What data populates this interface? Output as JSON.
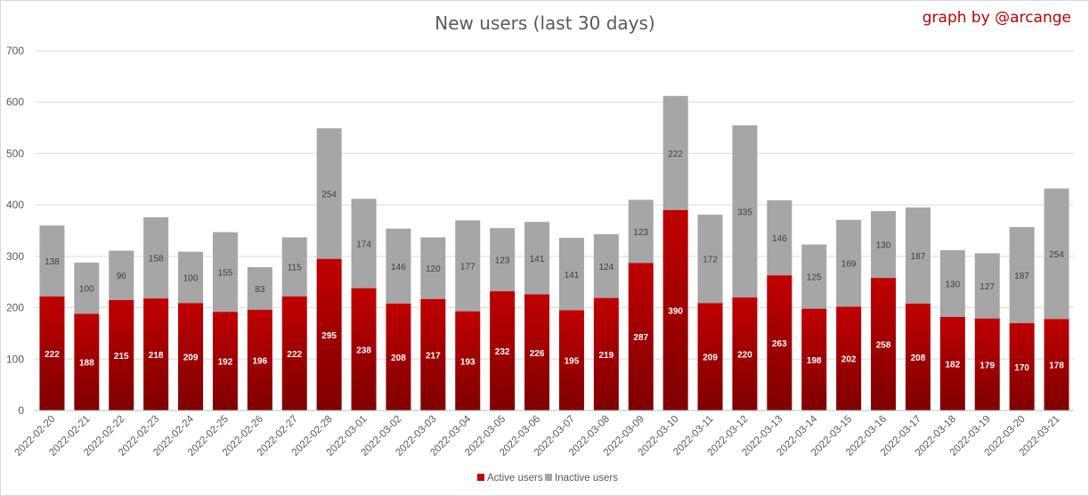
{
  "chart_data": {
    "type": "bar",
    "stacked": true,
    "title": "New users (last 30 days)",
    "credit": "graph by @arcange",
    "xlabel": "",
    "ylabel": "",
    "ylim": [
      0,
      700
    ],
    "yticks": [
      0,
      100,
      200,
      300,
      400,
      500,
      600,
      700
    ],
    "grid": true,
    "legend_position": "bottom",
    "categories": [
      "2022-02-20",
      "2022-02-21",
      "2022-02-22",
      "2022-02-23",
      "2022-02-24",
      "2022-02-25",
      "2022-02-26",
      "2022-02-27",
      "2022-02-28",
      "2022-03-01",
      "2022-03-02",
      "2022-03-03",
      "2022-03-04",
      "2022-03-05",
      "2022-03-06",
      "2022-03-07",
      "2022-03-08",
      "2022-03-09",
      "2022-03-10",
      "2022-03-11",
      "2022-03-12",
      "2022-03-13",
      "2022-03-14",
      "2022-03-15",
      "2022-03-16",
      "2022-03-17",
      "2022-03-18",
      "2022-03-19",
      "2022-03-20",
      "2022-03-21"
    ],
    "series": [
      {
        "name": "Active users",
        "color": "#c00000",
        "color_dark": "#7f0000",
        "values": [
          222,
          188,
          215,
          218,
          209,
          192,
          196,
          222,
          295,
          238,
          208,
          217,
          193,
          232,
          226,
          195,
          219,
          287,
          390,
          209,
          220,
          263,
          198,
          202,
          258,
          208,
          182,
          179,
          170,
          178
        ]
      },
      {
        "name": "Inactive users",
        "color": "#a6a6a6",
        "values": [
          138,
          100,
          96,
          158,
          100,
          155,
          83,
          115,
          254,
          174,
          146,
          120,
          177,
          123,
          141,
          141,
          124,
          123,
          222,
          172,
          335,
          146,
          125,
          169,
          130,
          187,
          130,
          127,
          187,
          254
        ]
      }
    ]
  }
}
